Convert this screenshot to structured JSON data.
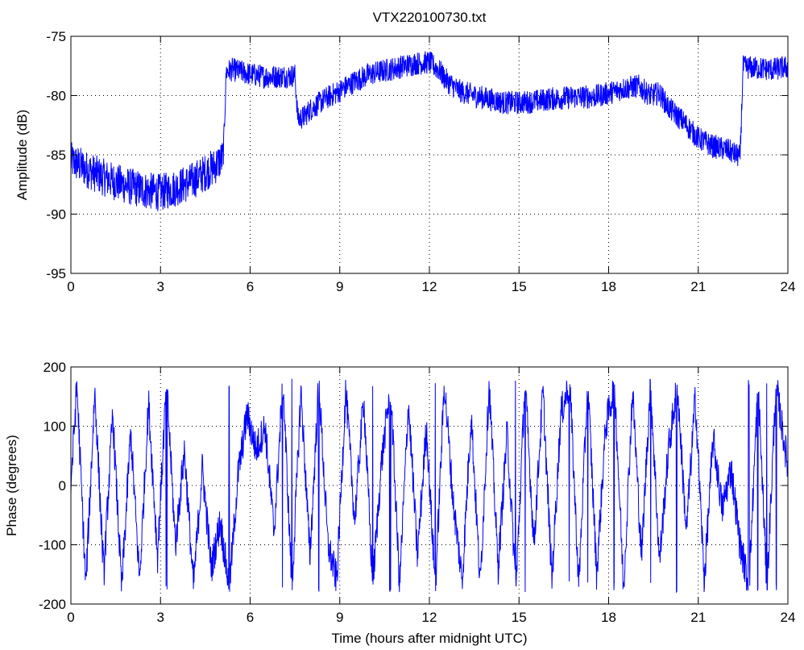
{
  "chart_data": [
    {
      "type": "line",
      "title": "VTX220100730.txt",
      "xlabel": "",
      "ylabel": "Amplitude (dB)",
      "xlim": [
        0,
        24
      ],
      "ylim": [
        -95,
        -75
      ],
      "xticks": [
        0,
        3,
        6,
        9,
        12,
        15,
        18,
        21,
        24
      ],
      "yticks": [
        -95,
        -90,
        -85,
        -80,
        -75
      ],
      "grid": true,
      "color": "#0000ff",
      "series": [
        {
          "name": "",
          "x": [
            0,
            0.25,
            0.5,
            1,
            1.5,
            2,
            2.5,
            3,
            3.5,
            4,
            4.5,
            4.8,
            5.1,
            5.2,
            5.4,
            6,
            6.5,
            7,
            7.5,
            7.6,
            7.8,
            8,
            8.5,
            9,
            9.5,
            10,
            10.5,
            11,
            11.5,
            12,
            12.3,
            12.6,
            13,
            13.5,
            14,
            14.5,
            15,
            15.5,
            16,
            16.5,
            17,
            17.5,
            18,
            18.5,
            19,
            19.4,
            19.7,
            20,
            20.5,
            21,
            21.5,
            22,
            22.4,
            22.5,
            23,
            23.5,
            24
          ],
          "y": [
            -85.5,
            -85.8,
            -86.2,
            -86.8,
            -87.3,
            -87.7,
            -88,
            -88.2,
            -87.8,
            -87.3,
            -86.5,
            -86,
            -85.2,
            -78,
            -77.8,
            -78.2,
            -78.4,
            -78.4,
            -78.3,
            -82,
            -81.8,
            -81.2,
            -80.3,
            -79.6,
            -78.8,
            -78.2,
            -77.9,
            -77.6,
            -77.3,
            -77.2,
            -77.8,
            -78.8,
            -79.6,
            -80,
            -80.3,
            -80.6,
            -80.6,
            -80.5,
            -80.3,
            -80.2,
            -80.1,
            -80.1,
            -79.8,
            -79.4,
            -79.2,
            -80,
            -79.8,
            -81,
            -82.2,
            -83.6,
            -84.3,
            -84.6,
            -85.2,
            -77.6,
            -77.7,
            -77.8,
            -77.6
          ]
        }
      ]
    },
    {
      "type": "line",
      "title": "",
      "xlabel": "Time (hours after midnight UTC)",
      "ylabel": "Phase (degrees)",
      "xlim": [
        0,
        24
      ],
      "ylim": [
        -200,
        200
      ],
      "xticks": [
        0,
        3,
        6,
        9,
        12,
        15,
        18,
        21,
        24
      ],
      "yticks": [
        -200,
        -100,
        0,
        100,
        200
      ],
      "grid": true,
      "color": "#0000ff",
      "series": [
        {
          "name": "",
          "x": [
            0,
            0.2,
            0.5,
            0.8,
            1.1,
            1.4,
            1.7,
            2,
            2.3,
            2.6,
            2.9,
            3.2,
            3.5,
            3.8,
            4.1,
            4.4,
            4.7,
            5,
            5.3,
            5.6,
            5.9,
            6.2,
            6.5,
            6.8,
            7.1,
            7.4,
            7.7,
            8,
            8.3,
            8.6,
            8.9,
            9.2,
            9.5,
            9.8,
            10.1,
            10.4,
            10.7,
            11,
            11.3,
            11.6,
            11.9,
            12.2,
            12.5,
            12.8,
            13.1,
            13.4,
            13.7,
            14,
            14.3,
            14.6,
            14.9,
            15.2,
            15.5,
            15.8,
            16.1,
            16.4,
            16.7,
            17,
            17.3,
            17.6,
            17.9,
            18.2,
            18.5,
            18.8,
            19.1,
            19.4,
            19.7,
            20,
            20.3,
            20.6,
            20.9,
            21.2,
            21.5,
            21.8,
            22.1,
            22.4,
            22.7,
            23,
            23.3,
            23.6,
            24
          ],
          "y": [
            0,
            170,
            -170,
            160,
            -150,
            120,
            -175,
            90,
            -160,
            140,
            -120,
            175,
            -100,
            60,
            -170,
            30,
            -140,
            -60,
            -175,
            20,
            120,
            60,
            100,
            -80,
            175,
            -175,
            160,
            -120,
            175,
            -100,
            -160,
            160,
            -60,
            150,
            -170,
            40,
            170,
            -170,
            140,
            -120,
            100,
            -175,
            175,
            -30,
            -160,
            120,
            -170,
            170,
            -140,
            90,
            -175,
            175,
            -100,
            160,
            -160,
            120,
            175,
            -170,
            175,
            -150,
            100,
            170,
            -175,
            160,
            -120,
            175,
            -130,
            60,
            170,
            -80,
            150,
            -160,
            80,
            -40,
            30,
            -100,
            -170,
            175,
            -175,
            170,
            30
          ]
        }
      ]
    }
  ]
}
